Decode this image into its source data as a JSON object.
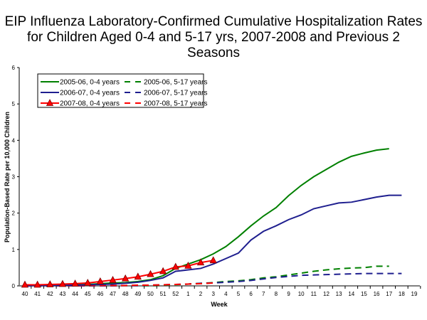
{
  "chart_data": {
    "type": "line",
    "title": "EIP Influenza Laboratory-Confirmed Cumulative Hospitalization Rates for Children Aged 0-4 and 5-17 yrs, 2007-2008 and Previous 2 Seasons",
    "xlabel": "Week",
    "ylabel": "Population-Based Rate per 10,000 Children",
    "ylim": [
      0,
      6
    ],
    "yticks": [
      "0",
      "1",
      "2",
      "3",
      "4",
      "5",
      "6"
    ],
    "categories": [
      "40",
      "41",
      "42",
      "43",
      "44",
      "45",
      "46",
      "47",
      "48",
      "49",
      "50",
      "51",
      "52",
      "1",
      "2",
      "3",
      "4",
      "5",
      "6",
      "7",
      "8",
      "9",
      "10",
      "11",
      "12",
      "13",
      "14",
      "15",
      "16",
      "17",
      "18",
      "19"
    ],
    "grid": false,
    "legend_position": "top-left",
    "series": [
      {
        "name": "2005-06, 0-4 years",
        "color": "#008000",
        "dash": false,
        "marker": null,
        "values": [
          0.02,
          0.02,
          0.02,
          0.03,
          0.03,
          0.04,
          0.06,
          0.08,
          0.09,
          0.12,
          0.17,
          0.28,
          0.48,
          0.6,
          0.72,
          0.88,
          1.08,
          1.35,
          1.65,
          1.92,
          2.15,
          2.48,
          2.76,
          3.0,
          3.2,
          3.4,
          3.56,
          3.65,
          3.73,
          3.77,
          null,
          null
        ]
      },
      {
        "name": "2005-06, 5-17 years",
        "color": "#008000",
        "dash": true,
        "marker": null,
        "values": [
          0,
          0,
          0,
          0,
          0,
          0,
          0,
          0.01,
          0.01,
          0.01,
          0.01,
          0.02,
          0.03,
          0.05,
          0.07,
          0.09,
          0.12,
          0.14,
          0.17,
          0.22,
          0.25,
          0.3,
          0.35,
          0.4,
          0.44,
          0.47,
          0.49,
          0.5,
          0.54,
          0.54,
          null,
          null
        ]
      },
      {
        "name": "2006-07, 0-4 years",
        "color": "#1f1f8f",
        "dash": false,
        "marker": null,
        "values": [
          0.01,
          0.01,
          0.01,
          0.02,
          0.02,
          0.03,
          0.04,
          0.05,
          0.07,
          0.1,
          0.15,
          0.22,
          0.4,
          0.44,
          0.48,
          0.6,
          0.75,
          0.9,
          1.26,
          1.5,
          1.65,
          1.82,
          1.95,
          2.12,
          2.2,
          2.28,
          2.3,
          2.37,
          2.44,
          2.49,
          2.49,
          null
        ]
      },
      {
        "name": "2006-07, 5-17 years",
        "color": "#1f1f8f",
        "dash": true,
        "marker": null,
        "values": [
          0,
          0,
          0,
          0,
          0,
          0,
          0,
          0,
          0.01,
          0.01,
          0.02,
          0.03,
          0.04,
          0.05,
          0.07,
          0.08,
          0.1,
          0.12,
          0.15,
          0.19,
          0.23,
          0.26,
          0.29,
          0.3,
          0.31,
          0.32,
          0.33,
          0.34,
          0.34,
          0.34,
          0.34,
          null
        ]
      },
      {
        "name": "2007-08, 0-4 years",
        "color": "#ff0000",
        "dash": false,
        "marker": "triangle",
        "values": [
          0.03,
          0.03,
          0.04,
          0.05,
          0.06,
          0.08,
          0.12,
          0.16,
          0.2,
          0.25,
          0.32,
          0.4,
          0.52,
          0.55,
          0.64,
          0.7,
          null,
          null,
          null,
          null,
          null,
          null,
          null,
          null,
          null,
          null,
          null,
          null,
          null,
          null,
          null,
          null
        ]
      },
      {
        "name": "2007-08, 5-17 years",
        "color": "#ff0000",
        "dash": true,
        "marker": null,
        "values": [
          0.01,
          0.01,
          0.01,
          0.01,
          0.01,
          0.01,
          0.01,
          0.01,
          0.01,
          0.02,
          0.02,
          0.03,
          0.04,
          0.05,
          0.06,
          0.08,
          null,
          null,
          null,
          null,
          null,
          null,
          null,
          null,
          null,
          null,
          null,
          null,
          null,
          null,
          null,
          null
        ]
      }
    ]
  }
}
